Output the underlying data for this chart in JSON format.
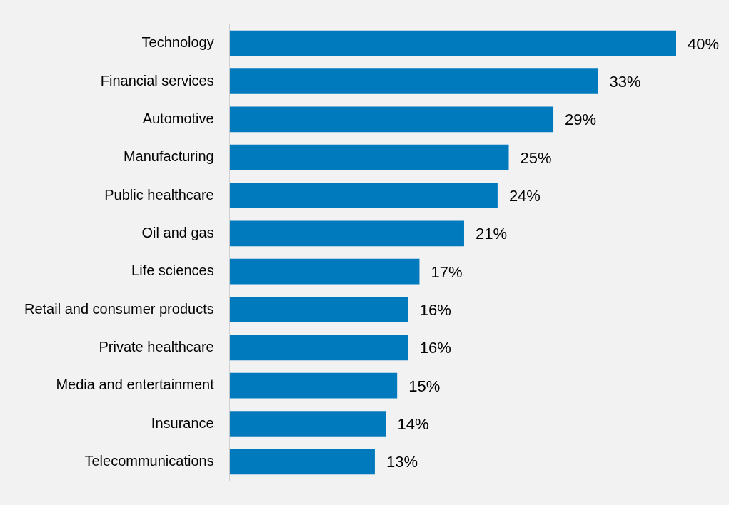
{
  "chart_data": {
    "type": "bar",
    "orientation": "horizontal",
    "categories": [
      "Technology",
      "Financial services",
      "Automotive",
      "Manufacturing",
      "Public healthcare",
      "Oil and gas",
      "Life sciences",
      "Retail and consumer products",
      "Private healthcare",
      "Media and entertainment",
      "Insurance",
      "Telecommunications"
    ],
    "values": [
      40,
      33,
      29,
      25,
      24,
      21,
      17,
      16,
      16,
      15,
      14,
      13
    ],
    "value_labels": [
      "40%",
      "33%",
      "29%",
      "25%",
      "24%",
      "21%",
      "17%",
      "16%",
      "16%",
      "15%",
      "14%",
      "13%"
    ],
    "color": "#0079bd"
  }
}
